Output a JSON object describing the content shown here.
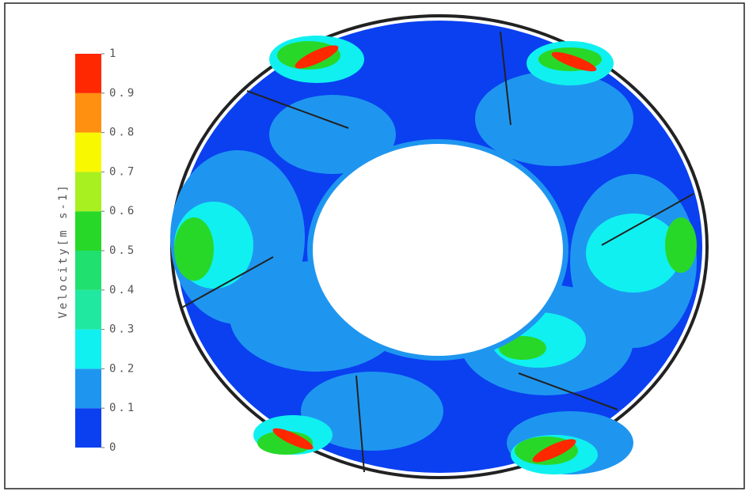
{
  "chart_data": {
    "type": "colorbar",
    "title": "Velocity[m s-1]",
    "ylim": [
      0,
      1
    ],
    "yticks": [
      0,
      0.1,
      0.2,
      0.3,
      0.4,
      0.5,
      0.6,
      0.7,
      0.8,
      0.9,
      1
    ],
    "colors": [
      "#0a40f0",
      "#1e96f0",
      "#10f0f0",
      "#20e8a0",
      "#20e070",
      "#28d828",
      "#a8f020",
      "#f8f800",
      "#ff9010",
      "#ff2800"
    ]
  }
}
